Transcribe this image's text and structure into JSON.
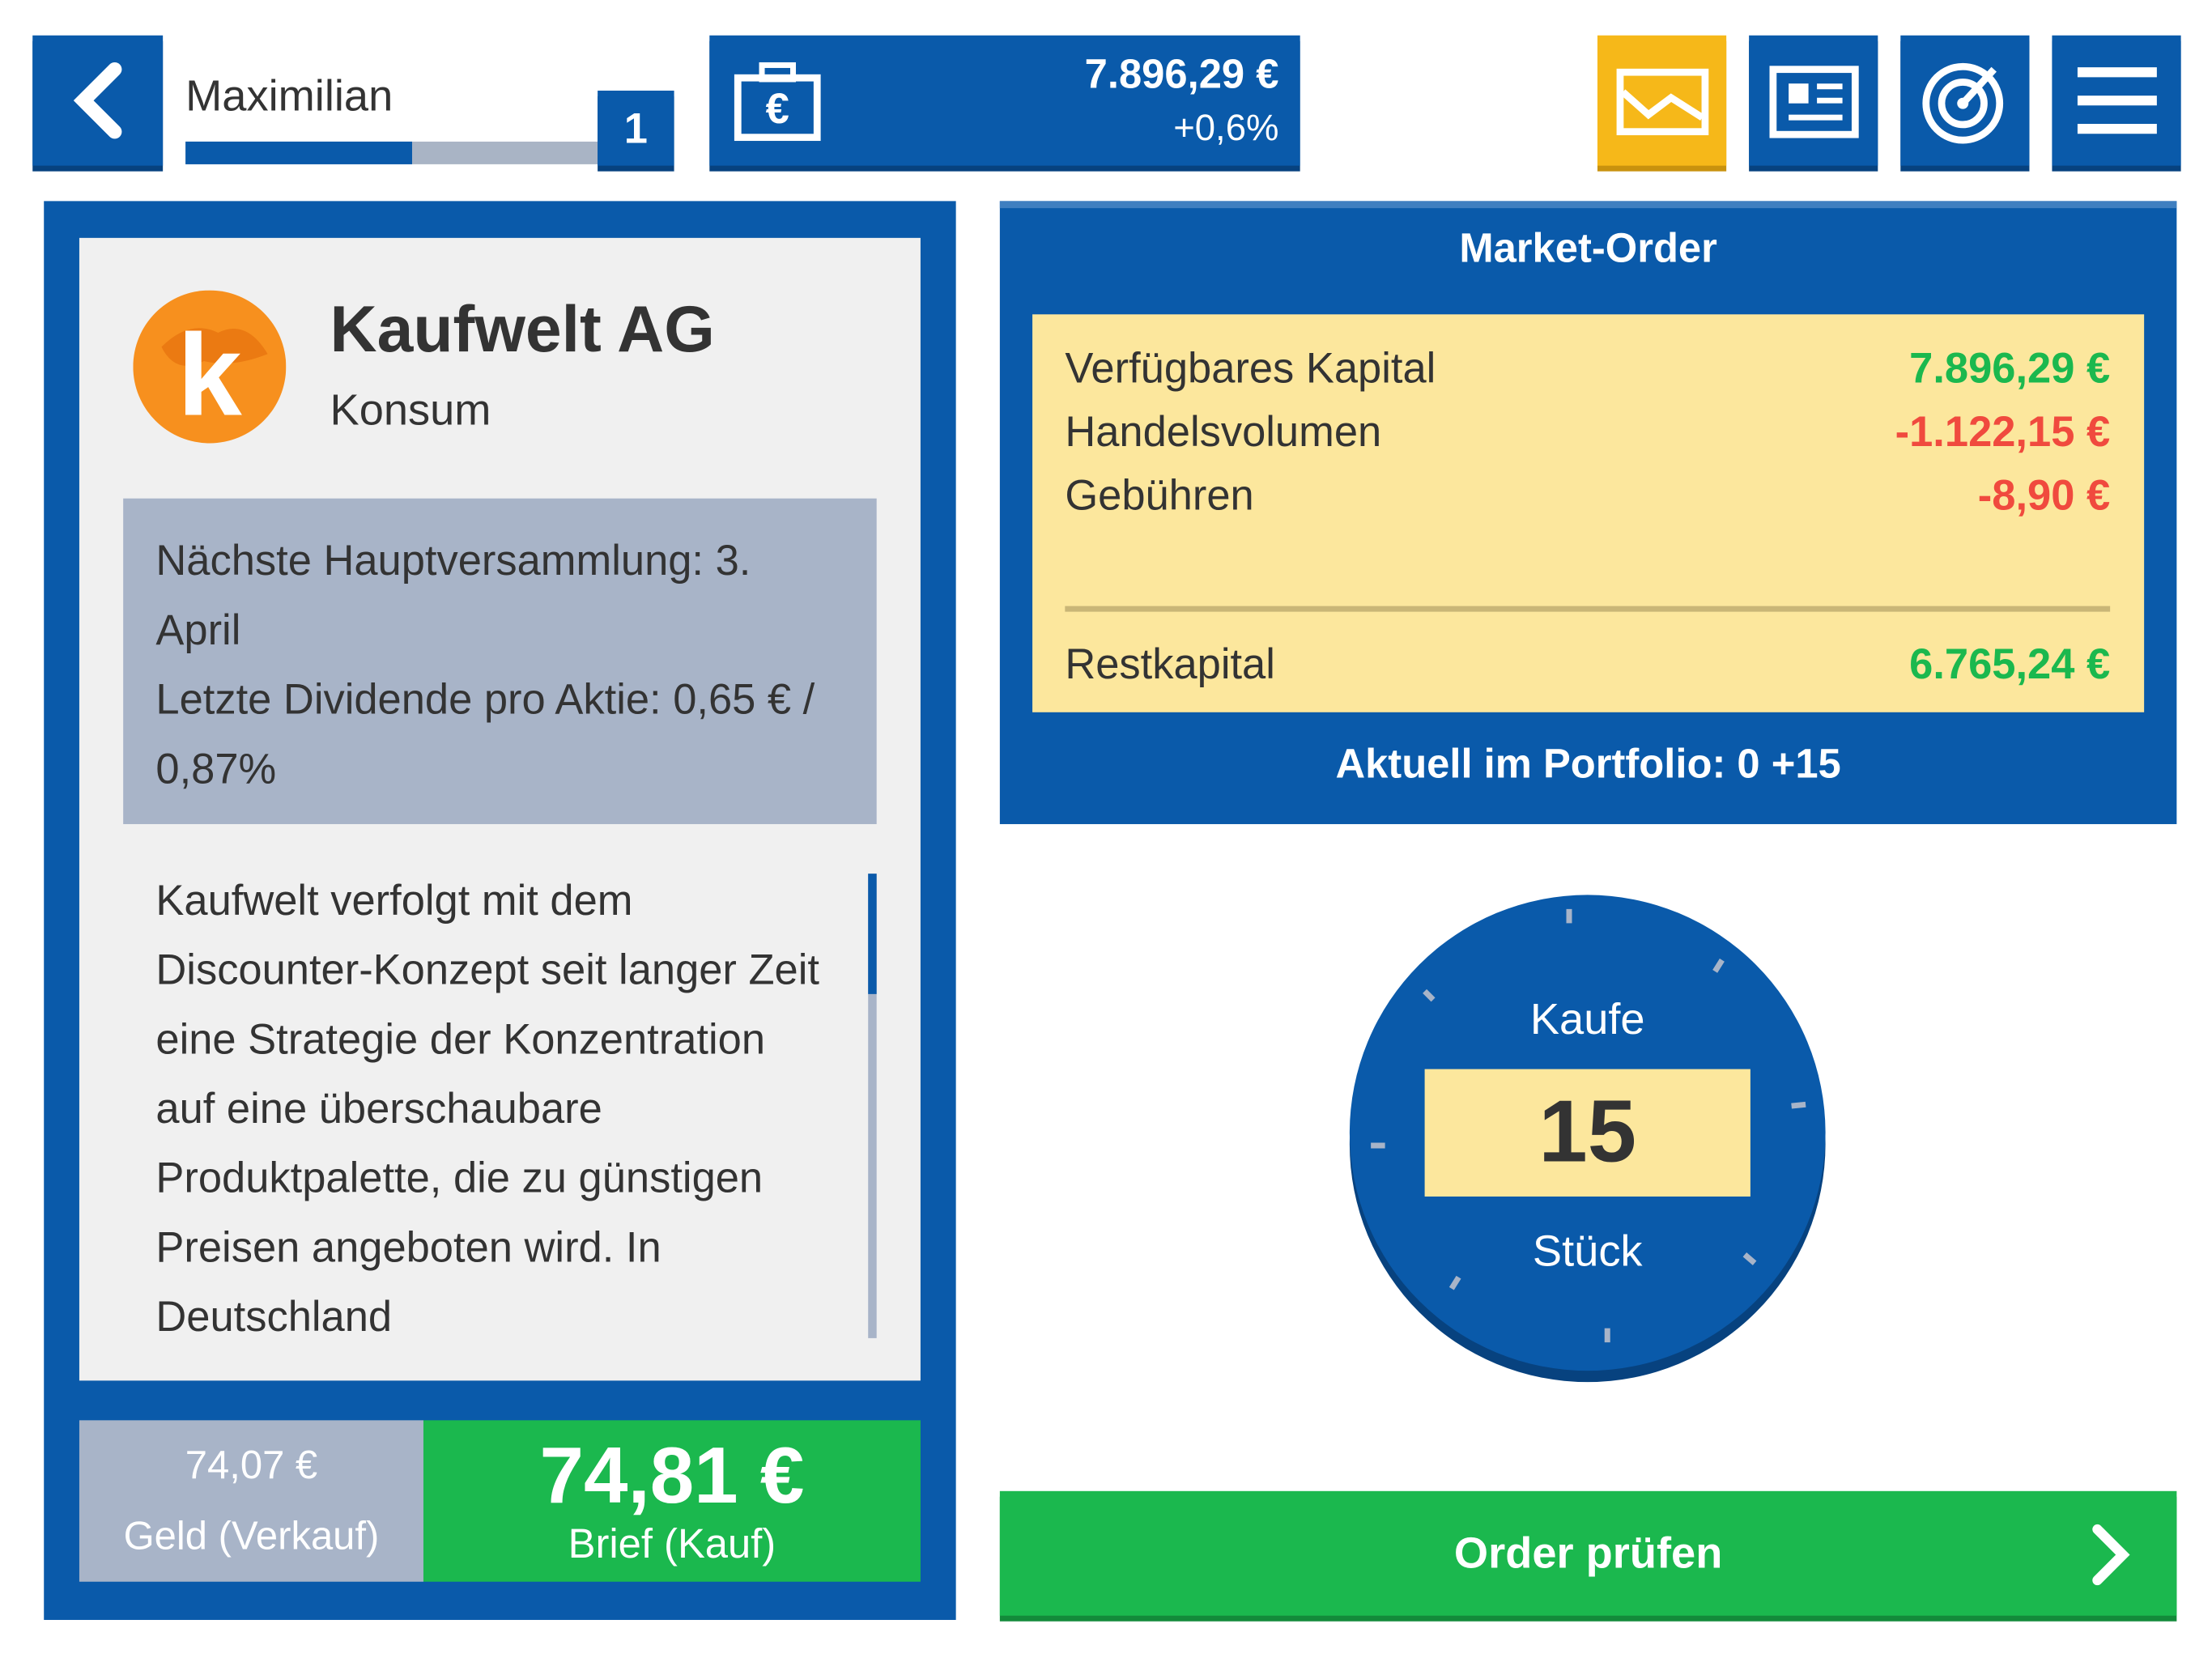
{
  "header": {
    "player_name": "Maximilian",
    "level": "1",
    "balance": "7.896,29 €",
    "balance_change": "+0,6%"
  },
  "stock": {
    "name": "Kaufwelt AG",
    "sector": "Konsum",
    "logo_letter": "k",
    "info": [
      "Nächste Hauptversammlung: 3. April",
      "Letzte Dividende pro Aktie: 0,65 € / 0,87%"
    ],
    "description": "Kaufwelt verfolgt mit dem Discounter-Konzept seit langer Zeit eine Strategie der Konzentration auf eine überschaubare Produktpalette, die zu günstigen Preisen angeboten wird. In Deutschland",
    "bid_price": "74,07 €",
    "bid_label": "Geld (Verkauf)",
    "ask_price": "74,81 €",
    "ask_label": "Brief (Kauf)"
  },
  "order": {
    "title": "Market-Order",
    "rows": [
      {
        "label": "Verfügbares Kapital",
        "value": "7.896,29 €"
      },
      {
        "label": "Handelsvolumen",
        "value": "-1.122,15 €"
      },
      {
        "label": "Gebühren",
        "value": "-8,90 €"
      }
    ],
    "rest": {
      "label": "Restkapital",
      "value": "6.765,24 €"
    },
    "portfolio": "Aktuell im Portfolio: 0 +15"
  },
  "dial": {
    "action": "Kaufe",
    "quantity": "15",
    "unit": "Stück"
  },
  "button": {
    "label": "Order prüfen"
  }
}
